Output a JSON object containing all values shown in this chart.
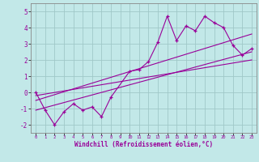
{
  "title": "",
  "xlabel": "Windchill (Refroidissement éolien,°C)",
  "ylabel": "",
  "bg_color": "#c2e8e8",
  "grid_color": "#a0c8c8",
  "line_color": "#990099",
  "xlim": [
    -0.5,
    23.5
  ],
  "ylim": [
    -2.5,
    5.5
  ],
  "xticks": [
    0,
    1,
    2,
    3,
    4,
    5,
    6,
    7,
    8,
    9,
    10,
    11,
    12,
    13,
    14,
    15,
    16,
    17,
    18,
    19,
    20,
    21,
    22,
    23
  ],
  "yticks": [
    -2,
    -1,
    0,
    1,
    2,
    3,
    4,
    5
  ],
  "series": [
    {
      "x": [
        0,
        1,
        2,
        3,
        4,
        5,
        6,
        7,
        8,
        10,
        11,
        12,
        13,
        14,
        15,
        16,
        17,
        18,
        19,
        20,
        21,
        22,
        23
      ],
      "y": [
        0,
        -1.1,
        -2.0,
        -1.2,
        -0.7,
        -1.1,
        -0.9,
        -1.5,
        -0.3,
        1.3,
        1.4,
        1.9,
        3.1,
        4.7,
        3.2,
        4.1,
        3.8,
        4.7,
        4.3,
        4.0,
        2.9,
        2.3,
        2.7
      ]
    },
    {
      "x": [
        0,
        23
      ],
      "y": [
        -1.1,
        2.5
      ]
    },
    {
      "x": [
        0,
        23
      ],
      "y": [
        -0.5,
        3.6
      ]
    },
    {
      "x": [
        0,
        23
      ],
      "y": [
        -0.2,
        2.0
      ]
    }
  ]
}
